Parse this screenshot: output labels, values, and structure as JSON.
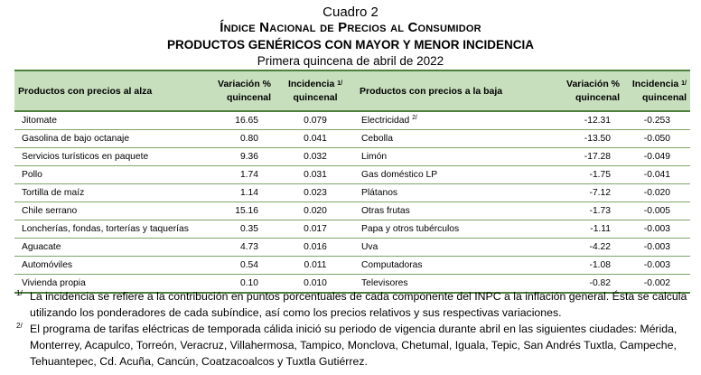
{
  "titles": {
    "cuadro": "Cuadro 2",
    "main": "Índice Nacional de Precios al Consumidor",
    "sub": "PRODUCTOS GENÉRICOS CON MAYOR Y MENOR INCIDENCIA",
    "period": "Primera quincena de abril de 2022"
  },
  "headers": {
    "left_products": "Productos con precios al alza",
    "variation_line1": "Variación %",
    "variation_line2": "quincenal",
    "incidence_line1": "Incidencia",
    "incidence_line2": "quincenal",
    "incidence_marker": "1/",
    "right_products": "Productos con precios a la baja"
  },
  "rows": [
    {
      "up_name": "Jitomate",
      "up_var": "16.65",
      "up_inc": "0.079",
      "down_name": "Electricidad",
      "down_marker": "2/",
      "down_var": "-12.31",
      "down_inc": "-0.253"
    },
    {
      "up_name": "Gasolina de bajo octanaje",
      "up_var": "0.80",
      "up_inc": "0.041",
      "down_name": "Cebolla",
      "down_marker": "",
      "down_var": "-13.50",
      "down_inc": "-0.050"
    },
    {
      "up_name": "Servicios turísticos en paquete",
      "up_var": "9.36",
      "up_inc": "0.032",
      "down_name": "Limón",
      "down_marker": "",
      "down_var": "-17.28",
      "down_inc": "-0.049"
    },
    {
      "up_name": "Pollo",
      "up_var": "1.74",
      "up_inc": "0.031",
      "down_name": "Gas doméstico LP",
      "down_marker": "",
      "down_var": "-1.75",
      "down_inc": "-0.041"
    },
    {
      "up_name": "Tortilla de maíz",
      "up_var": "1.14",
      "up_inc": "0.023",
      "down_name": "Plátanos",
      "down_marker": "",
      "down_var": "-7.12",
      "down_inc": "-0.020"
    },
    {
      "up_name": "Chile serrano",
      "up_var": "15.16",
      "up_inc": "0.020",
      "down_name": "Otras frutas",
      "down_marker": "",
      "down_var": "-1.73",
      "down_inc": "-0.005"
    },
    {
      "up_name": "Loncherías, fondas, torterías y taquerías",
      "up_var": "0.35",
      "up_inc": "0.017",
      "down_name": "Papa y otros tubérculos",
      "down_marker": "",
      "down_var": "-1.11",
      "down_inc": "-0.003"
    },
    {
      "up_name": "Aguacate",
      "up_var": "4.73",
      "up_inc": "0.016",
      "down_name": "Uva",
      "down_marker": "",
      "down_var": "-4.22",
      "down_inc": "-0.003"
    },
    {
      "up_name": "Automóviles",
      "up_var": "0.54",
      "up_inc": "0.011",
      "down_name": "Computadoras",
      "down_marker": "",
      "down_var": "-1.08",
      "down_inc": "-0.003"
    },
    {
      "up_name": "Vivienda propia",
      "up_var": "0.10",
      "up_inc": "0.010",
      "down_name": "Televisores",
      "down_marker": "",
      "down_var": "-0.82",
      "down_inc": "-0.002"
    }
  ],
  "notes": [
    {
      "marker": "1/",
      "text": "La incidencia se refiere a la contribución en puntos porcentuales de cada componente del INPC a la inflación general. Ésta se calcula utilizando los ponderadores de cada subíndice, así como los precios relativos y sus respectivas variaciones."
    },
    {
      "marker": "2/",
      "text": "El programa de tarifas eléctricas de temporada cálida inició su periodo de vigencia durante abril en las siguientes ciudades: Mérida, Monterrey, Acapulco, Torreón, Veracruz, Villahermosa, Tampico, Monclova, Chetumal, Iguala, Tepic, San Andrés Tuxtla, Campeche, Tehuantepec, Cd. Acuña, Cancún, Coatzacoalcos y Tuxtla Gutiérrez."
    }
  ]
}
